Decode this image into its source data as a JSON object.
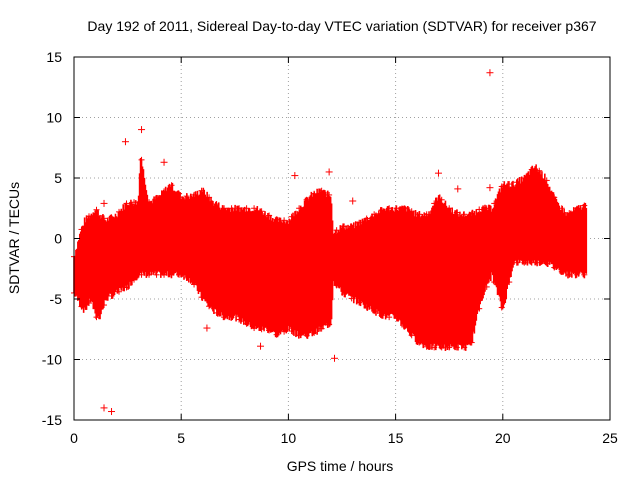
{
  "chart_data": {
    "type": "scatter",
    "title": "Day 192 of 2011, Sidereal Day-to-day VTEC variation (SDTVAR) for receiver p367",
    "xlabel": "GPS time / hours",
    "ylabel": "SDTVAR / TECUs",
    "xlim": [
      0,
      25
    ],
    "ylim": [
      -15,
      15
    ],
    "xticks": [
      "0",
      "5",
      "10",
      "15",
      "20",
      "25"
    ],
    "yticks": [
      "15",
      "10",
      "5",
      "0",
      "-5",
      "-10",
      "-15"
    ],
    "grid": true,
    "marker": "+",
    "colors": {
      "series": "#ff0000",
      "grid": "#a0a0a0",
      "axis": "#000000"
    },
    "series": [
      {
        "name": "SDTVAR",
        "envelope": {
          "x": [
            0,
            0.3,
            0.5,
            0.8,
            1.0,
            1.2,
            1.5,
            2.0,
            2.5,
            3.0,
            3.1,
            3.5,
            4.0,
            4.5,
            5.0,
            5.5,
            6.0,
            6.5,
            7.0,
            7.5,
            8.0,
            8.5,
            9.0,
            9.5,
            10.0,
            10.5,
            11.0,
            11.5,
            12.0,
            12.1,
            12.5,
            13.0,
            13.5,
            14.0,
            14.5,
            15.0,
            15.5,
            16.0,
            16.5,
            17.0,
            17.5,
            18.0,
            18.5,
            19.0,
            19.5,
            20.0,
            20.5,
            21.0,
            21.5,
            22.0,
            22.5,
            23.0,
            23.5,
            23.9
          ],
          "upper": [
            -1.5,
            0.5,
            1.5,
            2.0,
            2.5,
            2.0,
            1.5,
            2.0,
            3.0,
            3.0,
            7.0,
            3.0,
            3.5,
            4.5,
            3.5,
            3.5,
            4.0,
            3.0,
            2.5,
            2.5,
            2.5,
            2.5,
            2.0,
            1.5,
            1.5,
            2.5,
            3.5,
            4.0,
            3.5,
            0.5,
            1.0,
            1.0,
            1.5,
            2.0,
            2.5,
            2.5,
            2.5,
            2.0,
            2.0,
            3.5,
            2.5,
            2.0,
            2.0,
            2.5,
            2.5,
            4.5,
            4.5,
            5.0,
            6.0,
            5.0,
            3.0,
            2.0,
            2.5,
            2.8
          ],
          "lower": [
            -4.5,
            -5.5,
            -6.0,
            -5.0,
            -6.5,
            -6.5,
            -5.0,
            -4.5,
            -4.0,
            -3.0,
            -3.0,
            -3.0,
            -3.0,
            -3.0,
            -3.0,
            -3.5,
            -5.0,
            -6.0,
            -6.5,
            -6.5,
            -7.0,
            -7.5,
            -7.5,
            -8.0,
            -7.5,
            -8.0,
            -8.0,
            -7.5,
            -7.0,
            -3.5,
            -4.5,
            -5.0,
            -5.5,
            -6.0,
            -6.5,
            -6.5,
            -7.5,
            -8.5,
            -9.0,
            -9.0,
            -9.0,
            -9.0,
            -9.0,
            -5.0,
            -3.0,
            -6.0,
            -2.0,
            -2.0,
            -2.0,
            -2.0,
            -2.5,
            -3.0,
            -3.0,
            -3.0
          ]
        },
        "outliers": [
          {
            "x": 2.4,
            "y": 8.0
          },
          {
            "x": 3.15,
            "y": 9.0
          },
          {
            "x": 4.2,
            "y": 6.3
          },
          {
            "x": 1.4,
            "y": -14.0
          },
          {
            "x": 1.75,
            "y": -14.3
          },
          {
            "x": 17.9,
            "y": 4.1
          },
          {
            "x": 19.4,
            "y": 13.7
          },
          {
            "x": 19.4,
            "y": 4.2
          },
          {
            "x": 12.15,
            "y": -9.9
          },
          {
            "x": 8.7,
            "y": -8.9
          },
          {
            "x": 10.3,
            "y": 5.2
          },
          {
            "x": 11.9,
            "y": 5.5
          },
          {
            "x": 1.4,
            "y": 2.9
          },
          {
            "x": 17.0,
            "y": 5.4
          },
          {
            "x": 13.0,
            "y": 3.1
          },
          {
            "x": 21.0,
            "y": -1.6
          },
          {
            "x": 6.2,
            "y": -7.4
          }
        ]
      }
    ]
  }
}
